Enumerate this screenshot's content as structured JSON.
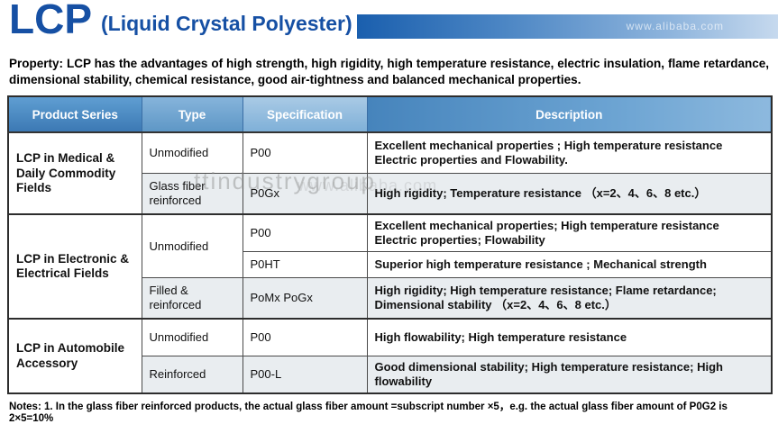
{
  "header": {
    "title": "LCP",
    "subtitle": "(Liquid Crystal Polyester)",
    "band_watermark": "www.alibaba.com"
  },
  "intro": "Property: LCP has the advantages of high strength, high rigidity, high temperature resistance, electric insulation, flame retardance, dimensional stability, chemical resistance, good air-tightness and balanced mechanical properties.",
  "watermark": {
    "line1": "ttindustrygroup",
    "line2": "www.alibaba.com"
  },
  "table": {
    "columns": [
      "Product Series",
      "Type",
      "Specification",
      "Description"
    ],
    "groups": [
      {
        "product": "LCP in Medical & Daily Commodity Fields",
        "rows": [
          {
            "type": "Unmodified",
            "spec": "P00",
            "desc": "Excellent mechanical properties ; High temperature resistance Electric properties and Flowability."
          },
          {
            "type": "Glass fiber reinforced",
            "spec": "P0Gx",
            "desc": "High rigidity; Temperature resistance （x=2、4、6、8 etc.）"
          }
        ]
      },
      {
        "product": "LCP in Electronic & Electrical Fields",
        "rows": [
          {
            "type": "Unmodified",
            "spec": "P00",
            "desc": "Excellent mechanical properties; High temperature resistance Electric properties; Flowability"
          },
          {
            "type": "",
            "spec": "P0HT",
            "desc": "Superior high temperature resistance ; Mechanical strength"
          },
          {
            "type": "Filled & reinforced",
            "spec": "PoMx PoGx",
            "desc": "High rigidity; High temperature resistance; Flame retardance; Dimensional stability （x=2、4、6、8 etc.）"
          }
        ]
      },
      {
        "product": "LCP in Automobile Accessory",
        "rows": [
          {
            "type": "Unmodified",
            "spec": "P00",
            "desc": "High flowability; High temperature resistance"
          },
          {
            "type": "Reinforced",
            "spec": "P00-L",
            "desc": "Good dimensional stability; High temperature resistance; High flowability"
          }
        ]
      }
    ]
  },
  "notes": "Notes: 1. In the glass fiber reinforced products, the actual glass fiber amount =subscript number ×5，e.g. the actual glass fiber amount of  P0G2 is 2×5=10%"
}
